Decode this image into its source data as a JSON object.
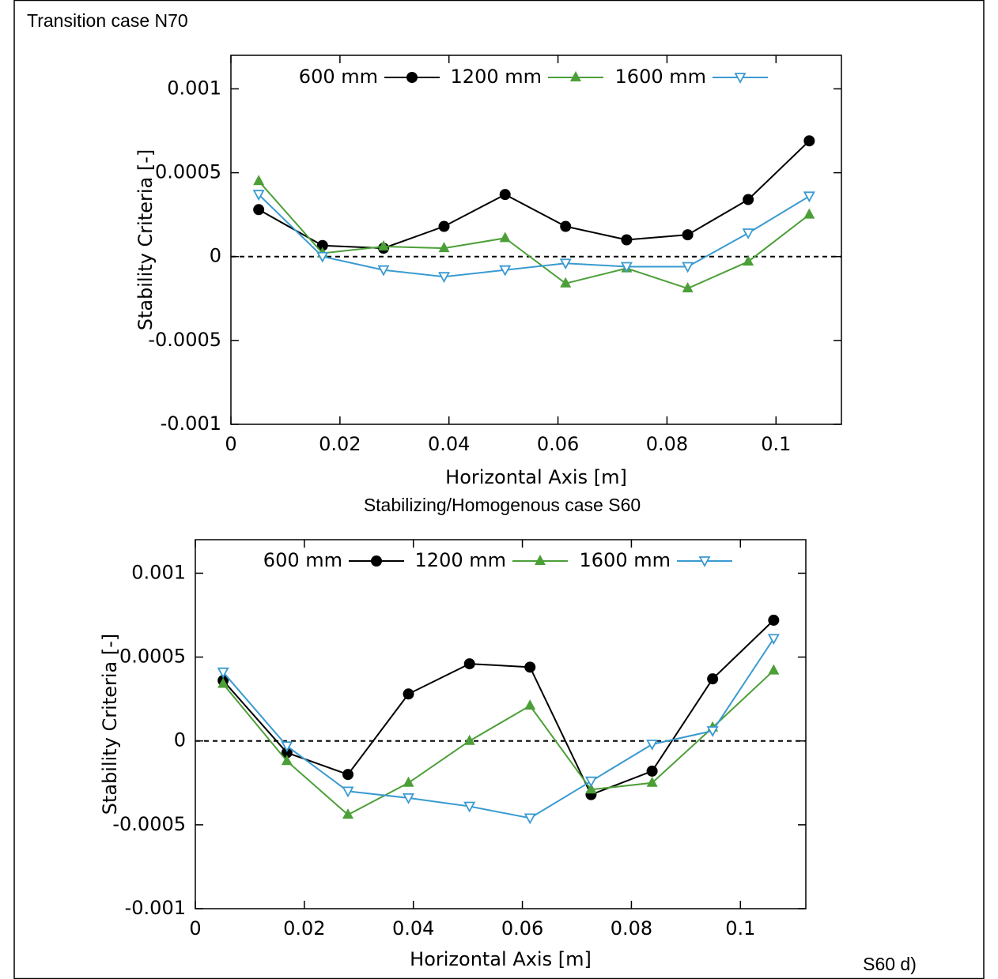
{
  "chart_data": [
    {
      "type": "line",
      "title": "Transition case N70",
      "x_label": "Horizontal Axis [m]",
      "y_label": "Stability Criteria [-]",
      "x": [
        0.0051,
        0.0168,
        0.028,
        0.0391,
        0.0503,
        0.0614,
        0.0726,
        0.0838,
        0.0949,
        0.1061
      ],
      "series": [
        {
          "name": "600 mm",
          "color": "#000000",
          "marker": "circle",
          "values": [
            0.00028,
            6.6e-05,
            5e-05,
            0.00018,
            0.00037,
            0.00018,
            0.0001,
            0.00013,
            0.00034,
            0.00069
          ]
        },
        {
          "name": "1200 mm",
          "color": "#4c9f38",
          "marker": "triangle-up",
          "values": [
            0.00045,
            2e-05,
            6e-05,
            5e-05,
            0.00011,
            -0.00016,
            -7e-05,
            -0.00019,
            -3e-05,
            0.00025
          ]
        },
        {
          "name": "1600 mm",
          "color": "#3a9ad1",
          "marker": "triangle-down",
          "values": [
            0.00037,
            0.0,
            -8e-05,
            -0.00012,
            -8e-05,
            -4e-05,
            -6e-05,
            -6e-05,
            0.00014,
            0.00036
          ]
        }
      ],
      "xlim": [
        0,
        0.112
      ],
      "ylim": [
        -0.001,
        0.0012
      ],
      "xticks": [
        0,
        0.02,
        0.04,
        0.06,
        0.08,
        0.1
      ],
      "yticks": [
        0.001,
        0.0005,
        0,
        -0.0005,
        -0.001
      ],
      "reference_line": 0
    },
    {
      "type": "line",
      "title": "Stabilizing/Homogenous case S60",
      "annotation": "S60 d)",
      "x_label": "Horizontal Axis [m]",
      "y_label": "Stability Criteria [-]",
      "x": [
        0.0051,
        0.0168,
        0.028,
        0.0391,
        0.0503,
        0.0614,
        0.0726,
        0.0838,
        0.0949,
        0.1061
      ],
      "series": [
        {
          "name": "600 mm",
          "color": "#000000",
          "marker": "circle",
          "values": [
            0.00036,
            -7e-05,
            -0.0002,
            0.00028,
            0.00046,
            0.00044,
            -0.00032,
            -0.00018,
            0.00037,
            0.00072
          ]
        },
        {
          "name": "1200 mm",
          "color": "#4c9f38",
          "marker": "triangle-up",
          "values": [
            0.00034,
            -0.00012,
            -0.00044,
            -0.00025,
            0.0,
            0.00021,
            -0.00029,
            -0.00025,
            8e-05,
            0.00042
          ]
        },
        {
          "name": "1600 mm",
          "color": "#3a9ad1",
          "marker": "triangle-down",
          "values": [
            0.00041,
            -3e-05,
            -0.0003,
            -0.00034,
            -0.00039,
            -0.00046,
            -0.00024,
            -2e-05,
            6e-05,
            0.00061
          ]
        }
      ],
      "xlim": [
        0,
        0.112
      ],
      "ylim": [
        -0.001,
        0.0012
      ],
      "xticks": [
        0,
        0.02,
        0.04,
        0.06,
        0.08,
        0.1
      ],
      "yticks": [
        0.001,
        0.0005,
        0,
        -0.0005,
        -0.001
      ],
      "reference_line": 0
    }
  ]
}
